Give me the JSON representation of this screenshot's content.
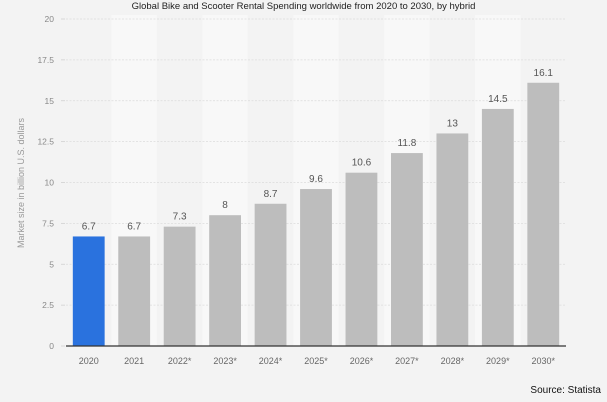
{
  "chart_data": {
    "type": "bar",
    "title": "Global Bike and Scooter Rental Spending worldwide from 2020 to 2030, by hybrid",
    "xlabel": "",
    "ylabel": "Market size in billion U.S. dollars",
    "ylim": [
      0,
      20
    ],
    "yticks": [
      "0",
      "2.5",
      "5",
      "7.5",
      "10",
      "12.5",
      "15",
      "17.5",
      "20"
    ],
    "ytick_values": [
      0,
      2.5,
      5,
      7.5,
      10,
      12.5,
      15,
      17.5,
      20
    ],
    "categories": [
      "2020",
      "2021",
      "2022*",
      "2023*",
      "2024*",
      "2025*",
      "2026*",
      "2027*",
      "2028*",
      "2029*",
      "2030*"
    ],
    "values": [
      6.7,
      6.7,
      7.3,
      8,
      8.7,
      9.6,
      10.6,
      11.8,
      13,
      14.5,
      16.1
    ],
    "data_labels": [
      "6.7",
      "6.7",
      "7.3",
      "8",
      "8.7",
      "9.6",
      "10.6",
      "11.8",
      "13",
      "14.5",
      "16.1"
    ],
    "grid": true,
    "colors": {
      "highlight": "#2a72de",
      "bar": "#bdbdbd",
      "band_a": "#f3f3f3",
      "band_b": "#f8f8f8"
    },
    "highlight_index": 0,
    "source": "Source: Statista"
  }
}
